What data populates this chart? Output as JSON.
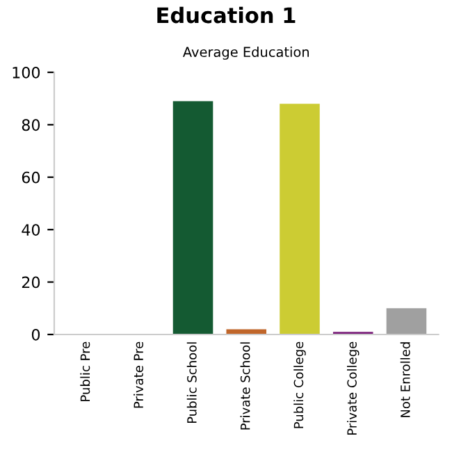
{
  "chart_data": {
    "type": "bar",
    "title": "Education 1",
    "subtitle": "Average Education",
    "categories": [
      "Public Pre",
      "Private Pre",
      "Public School",
      "Private School",
      "Public College",
      "Private College",
      "Not Enrolled"
    ],
    "values": [
      0,
      0,
      89,
      2,
      88,
      1,
      10
    ],
    "colors": [
      "#22aacc",
      "#771111",
      "#145a32",
      "#c0662a",
      "#cccc33",
      "#7a1f7a",
      "#a0a0a0"
    ],
    "ylim": [
      0,
      100
    ],
    "yticks": [
      0,
      20,
      40,
      60,
      80,
      100
    ],
    "grid": false
  }
}
